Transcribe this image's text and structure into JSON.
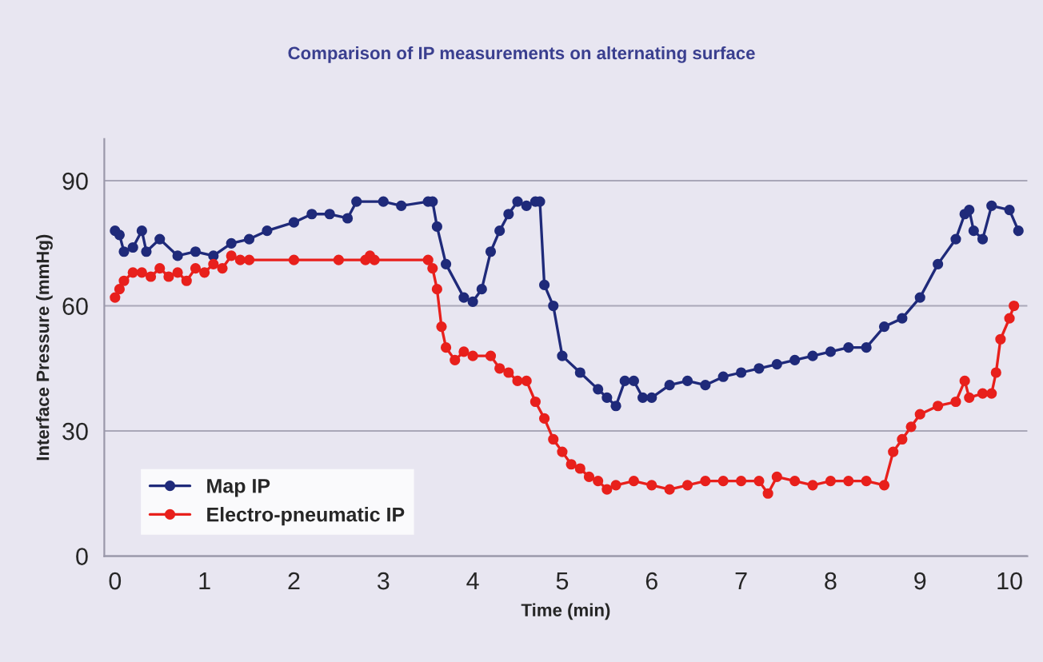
{
  "chart_data": {
    "type": "line",
    "title": "Comparison of IP measurements on alternating surface",
    "xlabel": "Time (min)",
    "ylabel": "Interface Pressure (mmHg)",
    "xlim": [
      -0.12,
      10.2
    ],
    "xticks": [
      0,
      1,
      2,
      3,
      4,
      5,
      6,
      7,
      8,
      9,
      10
    ],
    "ylim": [
      0,
      100
    ],
    "yticks": [
      0,
      30,
      60,
      90
    ],
    "grid": "y",
    "legend": "bottom left",
    "marker": "circle",
    "line_style": "solid",
    "series": [
      {
        "name": "Map IP",
        "color": "#1f2a7a",
        "x": [
          0,
          0.05,
          0.1,
          0.2,
          0.3,
          0.35,
          0.5,
          0.7,
          0.9,
          1.1,
          1.3,
          1.5,
          1.7,
          2.0,
          2.2,
          2.4,
          2.6,
          2.7,
          3.0,
          3.2,
          3.5,
          3.55,
          3.6,
          3.7,
          3.9,
          4.0,
          4.1,
          4.2,
          4.3,
          4.4,
          4.5,
          4.6,
          4.7,
          4.75,
          4.8,
          4.9,
          5.0,
          5.2,
          5.4,
          5.5,
          5.6,
          5.7,
          5.8,
          5.9,
          6.0,
          6.2,
          6.4,
          6.6,
          6.8,
          7.0,
          7.2,
          7.4,
          7.6,
          7.8,
          8.0,
          8.2,
          8.4,
          8.6,
          8.8,
          9.0,
          9.2,
          9.4,
          9.5,
          9.55,
          9.6,
          9.7,
          9.8,
          10.0,
          10.1
        ],
        "values": [
          78,
          77,
          73,
          74,
          78,
          73,
          76,
          72,
          73,
          72,
          75,
          76,
          78,
          80,
          82,
          82,
          81,
          85,
          85,
          84,
          85,
          85,
          79,
          70,
          62,
          61,
          64,
          73,
          78,
          82,
          85,
          84,
          85,
          85,
          65,
          60,
          48,
          44,
          40,
          38,
          36,
          42,
          42,
          38,
          38,
          41,
          42,
          41,
          43,
          44,
          45,
          46,
          47,
          48,
          49,
          50,
          50,
          55,
          57,
          62,
          70,
          76,
          82,
          83,
          78,
          76,
          84,
          83,
          78
        ]
      },
      {
        "name": "Electro-pneumatic IP",
        "color": "#e8201c",
        "x": [
          0,
          0.05,
          0.1,
          0.2,
          0.3,
          0.4,
          0.5,
          0.6,
          0.7,
          0.8,
          0.9,
          1.0,
          1.1,
          1.2,
          1.3,
          1.4,
          1.5,
          2.0,
          2.5,
          2.8,
          2.85,
          2.9,
          3.5,
          3.55,
          3.6,
          3.65,
          3.7,
          3.8,
          3.9,
          4.0,
          4.2,
          4.3,
          4.4,
          4.5,
          4.6,
          4.7,
          4.8,
          4.9,
          5.0,
          5.1,
          5.2,
          5.3,
          5.4,
          5.5,
          5.6,
          5.8,
          6.0,
          6.2,
          6.4,
          6.6,
          6.8,
          7.0,
          7.2,
          7.3,
          7.4,
          7.6,
          7.8,
          8.0,
          8.2,
          8.4,
          8.6,
          8.7,
          8.8,
          8.9,
          9.0,
          9.2,
          9.4,
          9.5,
          9.55,
          9.7,
          9.8,
          9.85,
          9.9,
          10.0,
          10.05
        ],
        "values": [
          62,
          64,
          66,
          68,
          68,
          67,
          69,
          67,
          68,
          66,
          69,
          68,
          70,
          69,
          72,
          71,
          71,
          71,
          71,
          71,
          72,
          71,
          71,
          69,
          64,
          55,
          50,
          47,
          49,
          48,
          48,
          45,
          44,
          42,
          42,
          37,
          33,
          28,
          25,
          22,
          21,
          19,
          18,
          16,
          17,
          18,
          17,
          16,
          17,
          18,
          18,
          18,
          18,
          15,
          19,
          18,
          17,
          18,
          18,
          18,
          17,
          25,
          28,
          31,
          34,
          36,
          37,
          42,
          38,
          39,
          39,
          44,
          52,
          57,
          60
        ]
      }
    ]
  }
}
